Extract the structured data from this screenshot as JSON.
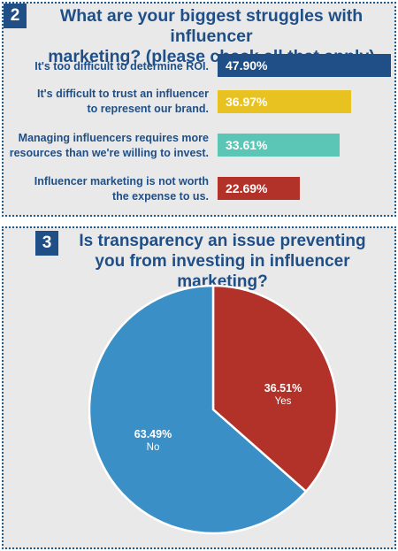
{
  "chart_data": [
    {
      "type": "bar",
      "number": "2",
      "title_lines": [
        "What are your biggest struggles with influencer",
        "marketing? (please check all that apply)"
      ],
      "categories": [
        [
          "It's too difficult to determine ROI."
        ],
        [
          "It's difficult to trust an influencer",
          "to represent our brand."
        ],
        [
          "Managing influencers requires more",
          "resources than we're willing to invest."
        ],
        [
          "Influencer marketing is not worth",
          "the expense to us."
        ]
      ],
      "values": [
        47.9,
        36.97,
        33.61,
        22.69
      ],
      "value_labels": [
        "47.90%",
        "36.97%",
        "33.61%",
        "22.69%"
      ],
      "colors": [
        "#1f4f86",
        "#e8c220",
        "#5cc6b6",
        "#b23128"
      ]
    },
    {
      "type": "pie",
      "number": "3",
      "title_lines": [
        "Is transparency an issue preventing",
        "you from investing in influencer marketing?"
      ],
      "slices": [
        {
          "label": "Yes",
          "value": 36.51,
          "value_label": "36.51%",
          "color": "#b23128"
        },
        {
          "label": "No",
          "value": 63.49,
          "value_label": "63.49%",
          "color": "#3a8fc7"
        }
      ]
    }
  ]
}
